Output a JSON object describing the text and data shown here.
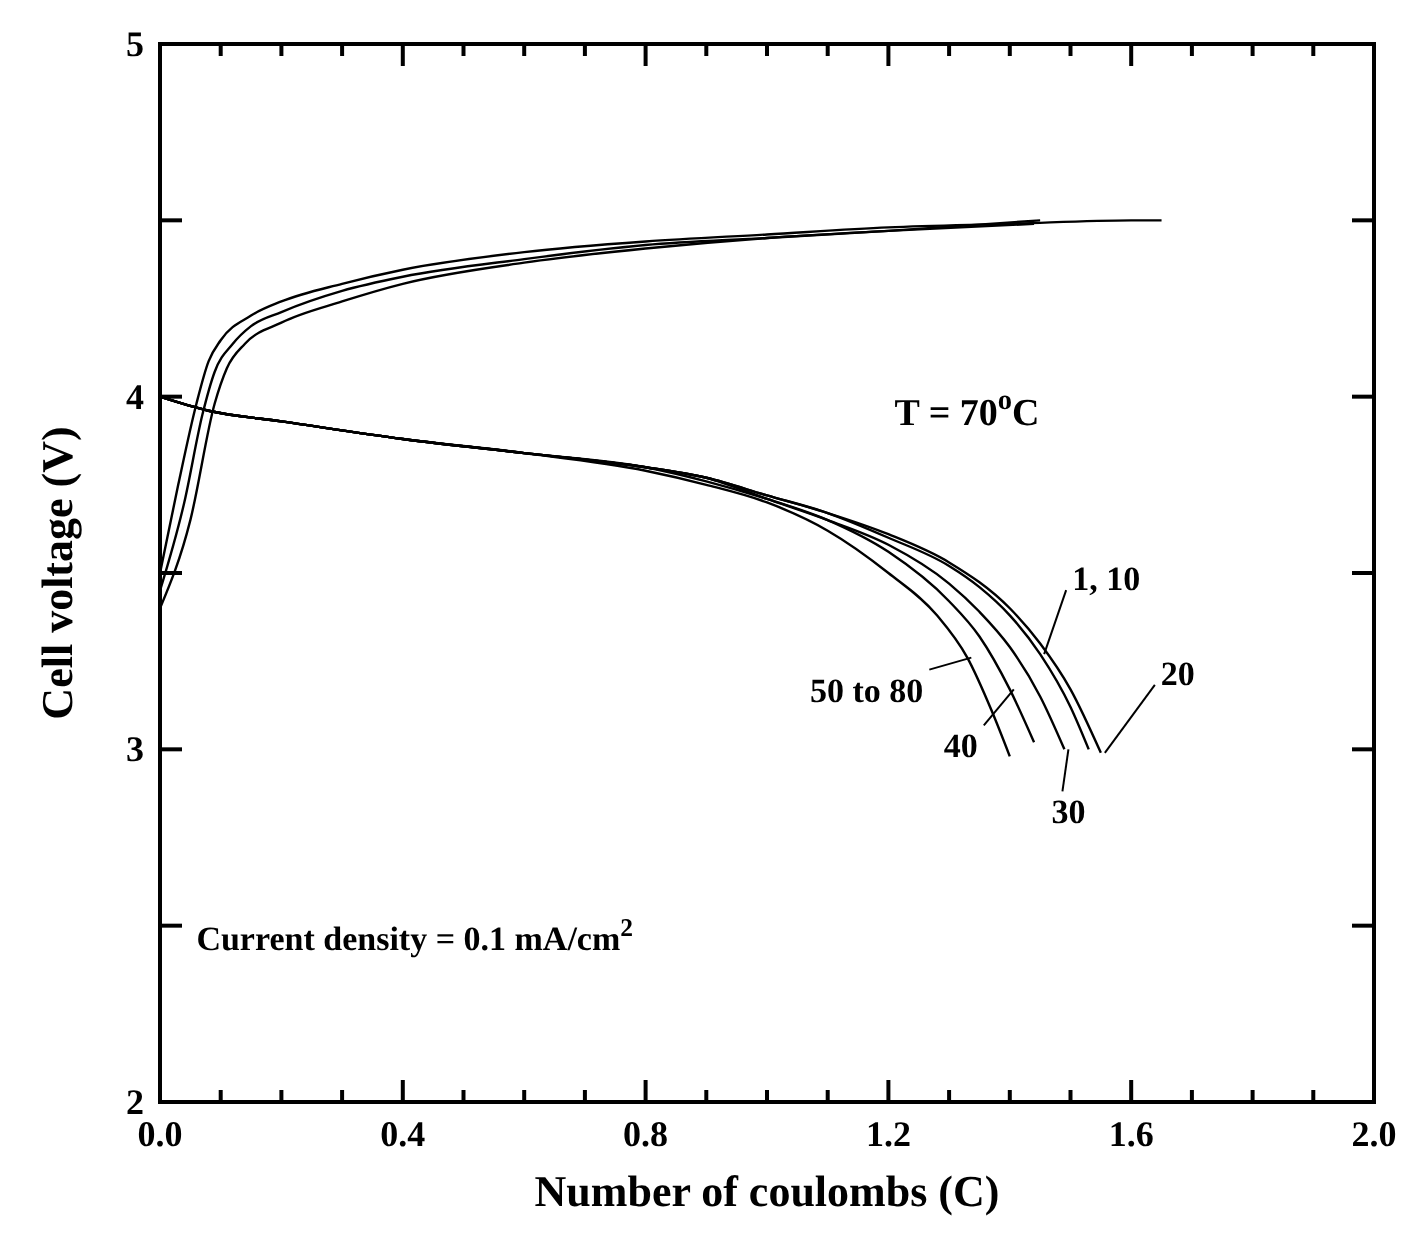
{
  "chart_data": {
    "type": "line",
    "xlabel": "Number of coulombs (C)",
    "ylabel": "Cell voltage (V)",
    "xlim": [
      0,
      2
    ],
    "ylim": [
      2,
      5
    ],
    "xticks": [
      {
        "value": 0,
        "label": "0.0"
      },
      {
        "value": 0.1,
        "label": null
      },
      {
        "value": 0.2,
        "label": null
      },
      {
        "value": 0.3,
        "label": null
      },
      {
        "value": 0.4,
        "label": "0.4"
      },
      {
        "value": 0.5,
        "label": null
      },
      {
        "value": 0.6,
        "label": null
      },
      {
        "value": 0.7,
        "label": null
      },
      {
        "value": 0.8,
        "label": "0.8"
      },
      {
        "value": 0.9,
        "label": null
      },
      {
        "value": 1.0,
        "label": null
      },
      {
        "value": 1.1,
        "label": null
      },
      {
        "value": 1.2,
        "label": "1.2"
      },
      {
        "value": 1.3,
        "label": null
      },
      {
        "value": 1.4,
        "label": null
      },
      {
        "value": 1.5,
        "label": null
      },
      {
        "value": 1.6,
        "label": "1.6"
      },
      {
        "value": 1.7,
        "label": null
      },
      {
        "value": 1.8,
        "label": null
      },
      {
        "value": 1.9,
        "label": null
      },
      {
        "value": 2.0,
        "label": "2.0"
      }
    ],
    "yticks": [
      2,
      {
        "value": 2.5,
        "label": null
      },
      3,
      {
        "value": 3.5,
        "label": null
      },
      4,
      {
        "value": 4.5,
        "label": null
      },
      5
    ],
    "grid": false,
    "legend": "right",
    "line_style": "solid",
    "annotations": [
      "T = 70$^{o}$C",
      "Current density = 0.1 mA/cm$^{2}$"
    ],
    "series": [
      {
        "color": "#000000",
        "x": [
          0,
          0.03,
          0.06,
          0.08,
          0.1,
          0.15,
          0.2,
          0.3,
          0.4,
          0.6,
          0.8,
          1.0,
          1.2,
          1.4,
          1.6,
          1.65
        ],
        "values": [
          3.5,
          3.75,
          3.98,
          4.1,
          4.16,
          4.23,
          4.27,
          4.32,
          4.36,
          4.41,
          4.44,
          4.46,
          4.48,
          4.49,
          4.5,
          4.5
        ]
      },
      {
        "color": "#000000",
        "x": [
          0,
          0.04,
          0.07,
          0.09,
          0.12,
          0.15,
          0.2,
          0.3,
          0.4,
          0.6,
          0.8,
          1.0,
          1.2,
          1.45
        ],
        "values": [
          3.45,
          3.7,
          3.95,
          4.07,
          4.15,
          4.2,
          4.24,
          4.3,
          4.34,
          4.39,
          4.43,
          4.45,
          4.47,
          4.5
        ]
      },
      {
        "color": "#000000",
        "x": [
          0,
          0.05,
          0.09,
          0.11,
          0.14,
          0.2,
          0.3,
          0.4,
          0.6,
          0.8,
          1.0,
          1.2,
          1.44
        ],
        "values": [
          3.4,
          3.65,
          3.98,
          4.08,
          4.15,
          4.21,
          4.27,
          4.32,
          4.38,
          4.42,
          4.45,
          4.47,
          4.49
        ]
      },
      {
        "name": "1, 10",
        "color": "#000000",
        "x": [
          0,
          0.08,
          0.2,
          0.4,
          0.6,
          0.8,
          0.9,
          1.0,
          1.1,
          1.2,
          1.3,
          1.35,
          1.4,
          1.45,
          1.5,
          1.53
        ],
        "values": [
          4.0,
          3.96,
          3.93,
          3.88,
          3.84,
          3.8,
          3.77,
          3.72,
          3.67,
          3.6,
          3.52,
          3.46,
          3.38,
          3.27,
          3.12,
          3.0
        ]
      },
      {
        "name": "20",
        "color": "#000000",
        "x": [
          0,
          0.08,
          0.2,
          0.4,
          0.6,
          0.8,
          0.9,
          1.0,
          1.1,
          1.2,
          1.3,
          1.4,
          1.45,
          1.5,
          1.55
        ],
        "values": [
          4.0,
          3.96,
          3.93,
          3.88,
          3.84,
          3.8,
          3.77,
          3.72,
          3.67,
          3.61,
          3.53,
          3.4,
          3.3,
          3.17,
          2.99
        ]
      },
      {
        "name": "30",
        "color": "#000000",
        "x": [
          0,
          0.08,
          0.2,
          0.4,
          0.6,
          0.8,
          0.9,
          1.0,
          1.1,
          1.2,
          1.3,
          1.35,
          1.4,
          1.45,
          1.49
        ],
        "values": [
          4.0,
          3.96,
          3.93,
          3.88,
          3.84,
          3.8,
          3.77,
          3.71,
          3.65,
          3.58,
          3.47,
          3.39,
          3.29,
          3.15,
          3.0
        ]
      },
      {
        "name": "40",
        "color": "#000000",
        "x": [
          0,
          0.08,
          0.2,
          0.4,
          0.6,
          0.8,
          0.9,
          1.0,
          1.1,
          1.2,
          1.3,
          1.35,
          1.4,
          1.44
        ],
        "values": [
          4.0,
          3.96,
          3.93,
          3.88,
          3.84,
          3.8,
          3.76,
          3.71,
          3.65,
          3.56,
          3.42,
          3.32,
          3.17,
          3.02
        ]
      },
      {
        "name": "50 to 80",
        "color": "#000000",
        "x": [
          0,
          0.08,
          0.2,
          0.4,
          0.6,
          0.8,
          0.9,
          1.0,
          1.1,
          1.2,
          1.28,
          1.33,
          1.37,
          1.4
        ],
        "values": [
          4.0,
          3.96,
          3.93,
          3.88,
          3.84,
          3.79,
          3.75,
          3.7,
          3.62,
          3.5,
          3.38,
          3.26,
          3.11,
          2.98
        ]
      }
    ]
  }
}
